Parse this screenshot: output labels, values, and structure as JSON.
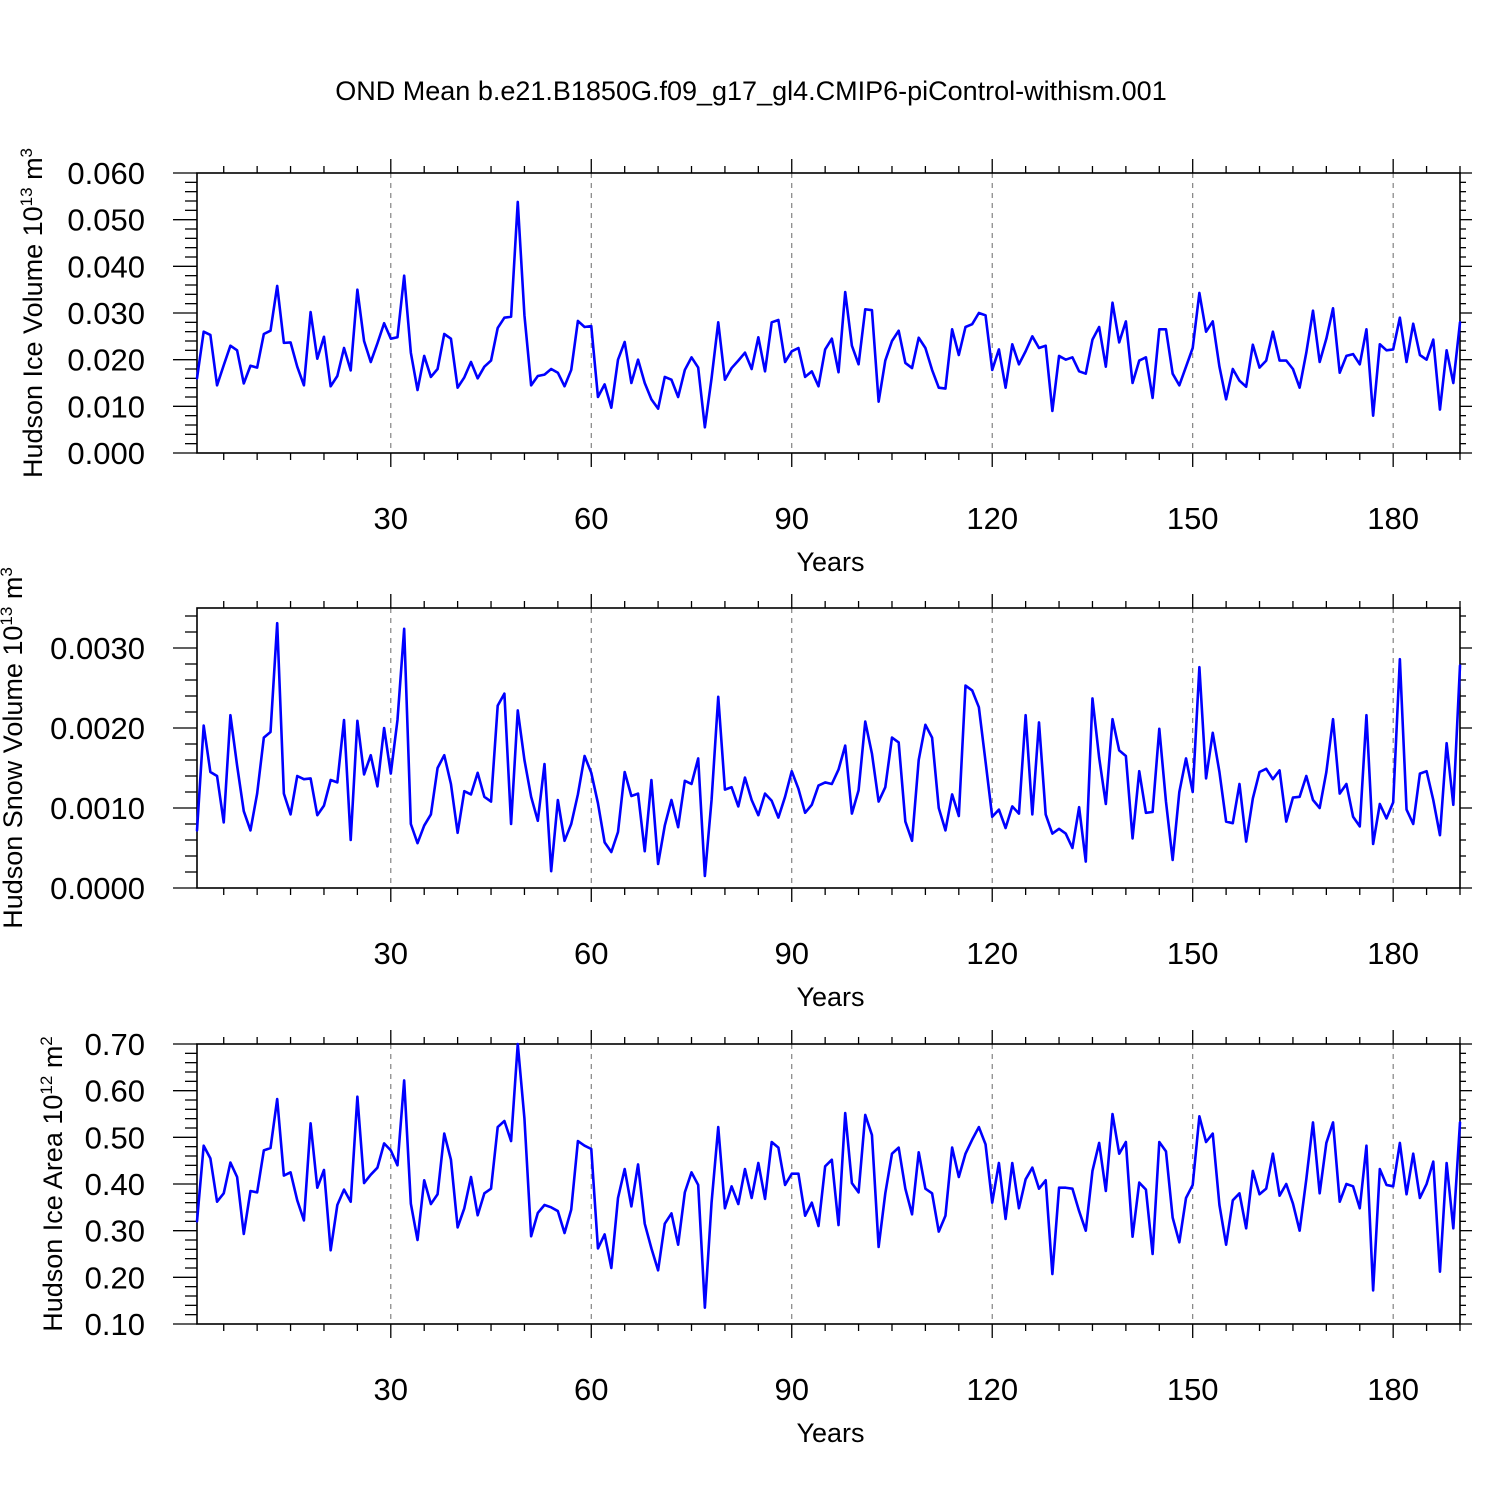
{
  "title": "OND Mean b.e21.B1850G.f09_g17_gl4.CMIP6-piControl-withism.001",
  "colors": {
    "series": "#0000ff",
    "grid": "#777777",
    "axis": "#000000"
  },
  "chart_data": [
    {
      "type": "line",
      "name": "ice-volume",
      "title": "OND Mean b.e21.B1850G.f09_g17_gl4.CMIP6-piControl-withism.001",
      "ylabel": {
        "main": "Hudson Ice Volume 10",
        "exponent": "13",
        "unit": " m",
        "unit_exponent": "3"
      },
      "xlabel": "Years",
      "xlim": [
        1,
        190
      ],
      "ylim": [
        0,
        0.06
      ],
      "yticks": [
        "0.000",
        "0.010",
        "0.020",
        "0.030",
        "0.040",
        "0.050",
        "0.060"
      ],
      "ytick_values": [
        0,
        0.01,
        0.02,
        0.03,
        0.04,
        0.05,
        0.06
      ],
      "xticks": [
        "30",
        "60",
        "90",
        "120",
        "150",
        "180"
      ],
      "xtick_values": [
        30,
        60,
        90,
        120,
        150,
        180
      ],
      "grid": "vertical dashed at x ticks",
      "x_start": 1,
      "values": [
        0.016,
        0.026,
        0.0253,
        0.0145,
        0.0188,
        0.023,
        0.022,
        0.0149,
        0.0187,
        0.0183,
        0.0255,
        0.0262,
        0.0358,
        0.0236,
        0.0237,
        0.0185,
        0.0145,
        0.0302,
        0.0202,
        0.0249,
        0.0143,
        0.0165,
        0.0225,
        0.0177,
        0.035,
        0.024,
        0.0195,
        0.0235,
        0.0278,
        0.0245,
        0.0248,
        0.038,
        0.0215,
        0.0135,
        0.0208,
        0.0163,
        0.018,
        0.0255,
        0.0245,
        0.014,
        0.0162,
        0.0195,
        0.016,
        0.0185,
        0.0198,
        0.0268,
        0.029,
        0.0292,
        0.0538,
        0.0295,
        0.0145,
        0.0165,
        0.0168,
        0.018,
        0.0172,
        0.0143,
        0.0178,
        0.0283,
        0.027,
        0.0272,
        0.012,
        0.0147,
        0.0097,
        0.02,
        0.0238,
        0.015,
        0.02,
        0.015,
        0.0115,
        0.0095,
        0.0163,
        0.0157,
        0.012,
        0.0178,
        0.0205,
        0.0183,
        0.0055,
        0.016,
        0.028,
        0.0157,
        0.0182,
        0.0198,
        0.0215,
        0.018,
        0.0248,
        0.0175,
        0.028,
        0.0285,
        0.0195,
        0.0218,
        0.0225,
        0.0163,
        0.0175,
        0.0143,
        0.0222,
        0.0245,
        0.0173,
        0.0345,
        0.023,
        0.019,
        0.0308,
        0.0306,
        0.011,
        0.0198,
        0.024,
        0.0262,
        0.0193,
        0.0182,
        0.0247,
        0.0225,
        0.0178,
        0.014,
        0.0138,
        0.0265,
        0.021,
        0.027,
        0.0276,
        0.03,
        0.0295,
        0.0178,
        0.0222,
        0.014,
        0.0233,
        0.019,
        0.0218,
        0.025,
        0.0225,
        0.023,
        0.009,
        0.0208,
        0.02,
        0.0205,
        0.0175,
        0.017,
        0.0243,
        0.027,
        0.0185,
        0.0322,
        0.0237,
        0.0282,
        0.015,
        0.0198,
        0.0205,
        0.0118,
        0.0265,
        0.0265,
        0.017,
        0.0145,
        0.0185,
        0.0225,
        0.0343,
        0.026,
        0.0282,
        0.0185,
        0.0115,
        0.018,
        0.0155,
        0.0142,
        0.0232,
        0.0183,
        0.0198,
        0.026,
        0.0198,
        0.0198,
        0.018,
        0.014,
        0.0215,
        0.0305,
        0.0195,
        0.0245,
        0.031,
        0.0172,
        0.0208,
        0.0212,
        0.019,
        0.0265,
        0.008,
        0.0233,
        0.022,
        0.0222,
        0.029,
        0.0195,
        0.0277,
        0.021,
        0.02,
        0.0243,
        0.0093,
        0.022,
        0.015,
        0.028
      ]
    },
    {
      "type": "line",
      "name": "snow-volume",
      "ylabel": {
        "main": "Hudson Snow Volume 10",
        "exponent": "13",
        "unit": " m",
        "unit_exponent": "3"
      },
      "xlabel": "Years",
      "xlim": [
        1,
        190
      ],
      "ylim": [
        0,
        0.0035
      ],
      "yticks": [
        "0.0000",
        "0.0010",
        "0.0020",
        "0.0030"
      ],
      "ytick_values": [
        0,
        0.001,
        0.002,
        0.003
      ],
      "xticks": [
        "30",
        "60",
        "90",
        "120",
        "150",
        "180"
      ],
      "xtick_values": [
        30,
        60,
        90,
        120,
        150,
        180
      ],
      "grid": "vertical dashed at x ticks",
      "x_start": 1,
      "values": [
        0.00072,
        0.00203,
        0.00145,
        0.0014,
        0.00082,
        0.00216,
        0.00153,
        0.00096,
        0.00072,
        0.00118,
        0.00188,
        0.00195,
        0.00331,
        0.00118,
        0.00092,
        0.0014,
        0.00136,
        0.00137,
        0.00091,
        0.00103,
        0.00135,
        0.00132,
        0.0021,
        0.0006,
        0.00209,
        0.00142,
        0.00166,
        0.00127,
        0.002,
        0.00143,
        0.0021,
        0.00324,
        0.0008,
        0.00056,
        0.00078,
        0.00092,
        0.0015,
        0.00166,
        0.0013,
        0.00069,
        0.00121,
        0.00117,
        0.00144,
        0.00114,
        0.00108,
        0.00228,
        0.00243,
        0.0008,
        0.00222,
        0.0016,
        0.00114,
        0.00084,
        0.00155,
        0.00021,
        0.0011,
        0.00059,
        0.0008,
        0.00117,
        0.00165,
        0.00144,
        0.00106,
        0.00057,
        0.00045,
        0.0007,
        0.00145,
        0.00115,
        0.00118,
        0.00046,
        0.00135,
        0.0003,
        0.00078,
        0.0011,
        0.00076,
        0.00134,
        0.0013,
        0.00162,
        0.00015,
        0.0011,
        0.00239,
        0.00123,
        0.00126,
        0.00102,
        0.00138,
        0.0011,
        0.00091,
        0.00118,
        0.00109,
        0.00088,
        0.00114,
        0.00146,
        0.00124,
        0.00094,
        0.00104,
        0.00128,
        0.00132,
        0.0013,
        0.00148,
        0.00178,
        0.00093,
        0.00122,
        0.00208,
        0.00168,
        0.00108,
        0.00126,
        0.00188,
        0.00182,
        0.00083,
        0.00059,
        0.0016,
        0.00204,
        0.00188,
        0.001,
        0.00072,
        0.00117,
        0.0009,
        0.00253,
        0.00247,
        0.00226,
        0.00158,
        0.00089,
        0.00098,
        0.00075,
        0.00102,
        0.00093,
        0.00216,
        0.00092,
        0.00207,
        0.00092,
        0.00068,
        0.00074,
        0.00068,
        0.0005,
        0.00101,
        0.00033,
        0.00237,
        0.00163,
        0.00105,
        0.00211,
        0.00172,
        0.00165,
        0.00062,
        0.00146,
        0.00094,
        0.00095,
        0.00199,
        0.00108,
        0.00035,
        0.0012,
        0.00162,
        0.0012,
        0.00276,
        0.00137,
        0.00194,
        0.00145,
        0.00083,
        0.00081,
        0.0013,
        0.00058,
        0.00112,
        0.00145,
        0.00149,
        0.00136,
        0.00147,
        0.00083,
        0.00113,
        0.00114,
        0.0014,
        0.0011,
        0.001,
        0.00145,
        0.00211,
        0.00118,
        0.0013,
        0.00089,
        0.00077,
        0.00216,
        0.00055,
        0.00105,
        0.00087,
        0.00107,
        0.00286,
        0.00098,
        0.0008,
        0.00143,
        0.00146,
        0.0011,
        0.00066,
        0.00181,
        0.00104,
        0.00278
      ]
    },
    {
      "type": "line",
      "name": "ice-area",
      "ylabel": {
        "main": "Hudson Ice Area 10",
        "exponent": "12",
        "unit": " m",
        "unit_exponent": "2"
      },
      "xlabel": "Years",
      "xlim": [
        1,
        190
      ],
      "ylim": [
        0.1,
        0.7
      ],
      "yticks": [
        "0.10",
        "0.20",
        "0.30",
        "0.40",
        "0.50",
        "0.60",
        "0.70"
      ],
      "ytick_values": [
        0.1,
        0.2,
        0.3,
        0.4,
        0.5,
        0.6,
        0.7
      ],
      "xticks": [
        "30",
        "60",
        "90",
        "120",
        "150",
        "180"
      ],
      "xtick_values": [
        30,
        60,
        90,
        120,
        150,
        180
      ],
      "grid": "vertical dashed at x ticks",
      "x_start": 1,
      "values": [
        0.32,
        0.482,
        0.455,
        0.362,
        0.38,
        0.446,
        0.415,
        0.293,
        0.385,
        0.382,
        0.472,
        0.477,
        0.582,
        0.418,
        0.425,
        0.365,
        0.322,
        0.53,
        0.392,
        0.43,
        0.258,
        0.355,
        0.388,
        0.362,
        0.587,
        0.402,
        0.42,
        0.435,
        0.487,
        0.472,
        0.44,
        0.622,
        0.358,
        0.28,
        0.408,
        0.357,
        0.378,
        0.508,
        0.452,
        0.307,
        0.348,
        0.415,
        0.333,
        0.38,
        0.39,
        0.522,
        0.535,
        0.492,
        0.7,
        0.54,
        0.288,
        0.338,
        0.355,
        0.35,
        0.342,
        0.295,
        0.345,
        0.492,
        0.482,
        0.475,
        0.262,
        0.292,
        0.22,
        0.37,
        0.432,
        0.352,
        0.442,
        0.315,
        0.262,
        0.215,
        0.315,
        0.337,
        0.27,
        0.382,
        0.425,
        0.398,
        0.135,
        0.36,
        0.522,
        0.348,
        0.395,
        0.357,
        0.432,
        0.37,
        0.445,
        0.368,
        0.49,
        0.478,
        0.398,
        0.422,
        0.422,
        0.332,
        0.36,
        0.31,
        0.438,
        0.452,
        0.312,
        0.552,
        0.402,
        0.382,
        0.548,
        0.505,
        0.265,
        0.38,
        0.465,
        0.478,
        0.39,
        0.335,
        0.468,
        0.39,
        0.38,
        0.298,
        0.332,
        0.478,
        0.415,
        0.465,
        0.495,
        0.522,
        0.485,
        0.36,
        0.445,
        0.325,
        0.445,
        0.348,
        0.41,
        0.435,
        0.39,
        0.408,
        0.207,
        0.392,
        0.392,
        0.39,
        0.342,
        0.3,
        0.428,
        0.488,
        0.385,
        0.55,
        0.465,
        0.49,
        0.287,
        0.403,
        0.388,
        0.25,
        0.49,
        0.47,
        0.328,
        0.275,
        0.37,
        0.398,
        0.545,
        0.49,
        0.508,
        0.355,
        0.27,
        0.365,
        0.38,
        0.305,
        0.428,
        0.378,
        0.39,
        0.465,
        0.375,
        0.4,
        0.358,
        0.3,
        0.41,
        0.532,
        0.38,
        0.488,
        0.532,
        0.362,
        0.4,
        0.395,
        0.348,
        0.482,
        0.172,
        0.432,
        0.398,
        0.395,
        0.488,
        0.378,
        0.465,
        0.37,
        0.4,
        0.448,
        0.212,
        0.445,
        0.305,
        0.532
      ]
    }
  ]
}
